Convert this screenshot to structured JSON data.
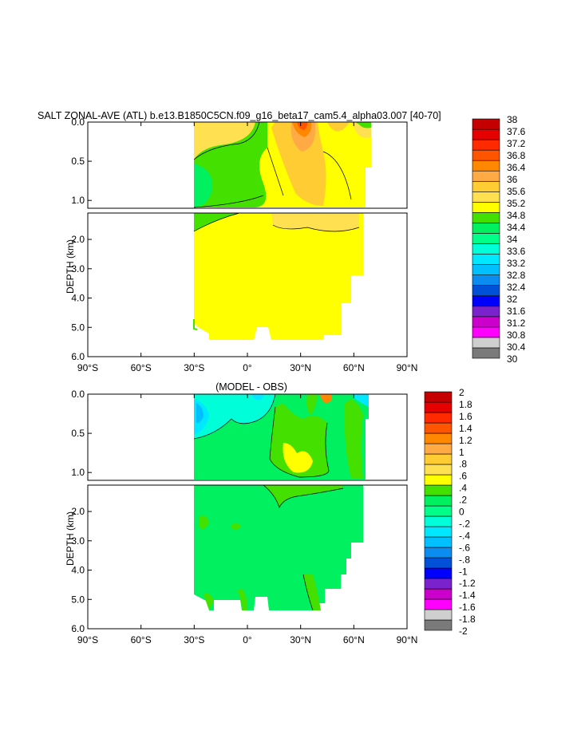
{
  "colors": {
    "top_palette": [
      "#7a7a7a",
      "#cfcfcf",
      "#ff00ff",
      "#cc00cc",
      "#7a22cc",
      "#0000ff",
      "#0050d8",
      "#0a8cf0",
      "#00c0ff",
      "#00e8ff",
      "#00ffd8",
      "#00ff88",
      "#00f060",
      "#44e000",
      "#ffff00",
      "#ffe050",
      "#ffcc33",
      "#ffaa44",
      "#ff8800",
      "#ff5500",
      "#ff2a00",
      "#e60000",
      "#c40000"
    ],
    "bottom_palette": [
      "#7a7a7a",
      "#cfcfcf",
      "#ff00ff",
      "#cc00cc",
      "#7a22cc",
      "#0000ff",
      "#0050d8",
      "#0a8cf0",
      "#00c0ff",
      "#00e8ff",
      "#00ffd8",
      "#00ff88",
      "#00f060",
      "#44e000",
      "#ffff00",
      "#ffe050",
      "#ffcc33",
      "#ffaa44",
      "#ff8800",
      "#ff5500",
      "#ff2a00",
      "#e60000",
      "#c40000"
    ]
  },
  "chart_data": [
    {
      "type": "heatmap",
      "title": "SALT ZONAL-AVE (ATL) b.e13.B1850C5CN.f09_g16_beta17_cam5.4_alpha03.007 [40-70]",
      "ylabel": "DEPTH (km)",
      "x_ticks": [
        "90°S",
        "60°S",
        "30°S",
        "0°",
        "30°N",
        "60°N",
        "90°N"
      ],
      "y_ticks_upper": [
        "0.0",
        "0.5",
        "1.0"
      ],
      "y_ticks_lower": [
        "2.0",
        "3.0",
        "4.0",
        "5.0",
        "6.0"
      ],
      "xlim": [
        -90,
        90
      ],
      "ylim": [
        6.0,
        0.0
      ],
      "colorbar_labels": [
        "38",
        "37.6",
        "37.2",
        "36.8",
        "36.4",
        "36",
        "35.6",
        "35.2",
        "34.8",
        "34.4",
        "34",
        "33.6",
        "33.2",
        "32.8",
        "32.4",
        "32",
        "31.6",
        "31.2",
        "30.8",
        "30.4",
        "30"
      ]
    },
    {
      "type": "heatmap",
      "title": "(MODEL - OBS)",
      "ylabel": "DEPTH (km)",
      "x_ticks": [
        "90°S",
        "60°S",
        "30°S",
        "0°",
        "30°N",
        "60°N",
        "90°N"
      ],
      "y_ticks_upper": [
        "0.0",
        "0.5",
        "1.0"
      ],
      "y_ticks_lower": [
        "2.0",
        "3.0",
        "4.0",
        "5.0",
        "6.0"
      ],
      "xlim": [
        -90,
        90
      ],
      "ylim": [
        6.0,
        0.0
      ],
      "colorbar_labels": [
        "2",
        "1.8",
        "1.6",
        "1.4",
        "1.2",
        "1",
        ".8",
        ".6",
        ".4",
        ".2",
        "0",
        "-.2",
        "-.4",
        "-.6",
        "-.8",
        "-1",
        "-1.2",
        "-1.4",
        "-1.6",
        "-1.8",
        "-2"
      ]
    }
  ]
}
